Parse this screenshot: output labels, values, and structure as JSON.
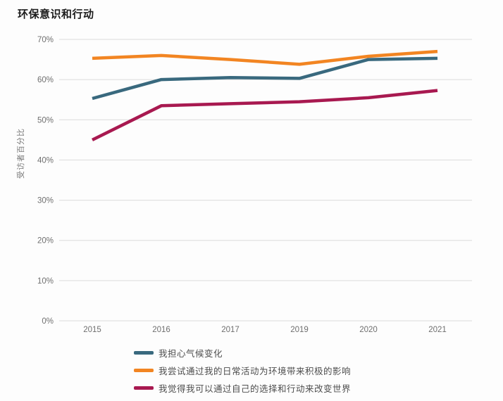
{
  "title": "环保意识和行动",
  "chart_data": {
    "type": "line",
    "x": [
      "2015",
      "2016",
      "2017",
      "2019",
      "2020",
      "2021"
    ],
    "series": [
      {
        "id": "worry-climate-change",
        "name": "我担心气候变化",
        "color": "#39697e",
        "values": [
          55.3,
          60,
          60.5,
          60.3,
          65,
          65.3
        ]
      },
      {
        "id": "daily-positive-impact",
        "name": "我尝试通过我的日常活动为环境带来积极的影响",
        "color": "#f28522",
        "values": [
          65.3,
          66,
          65,
          63.8,
          65.8,
          67
        ]
      },
      {
        "id": "choices-change-world",
        "name": "我觉得我可以通过自己的选择和行动来改变世界",
        "color": "#a81950",
        "values": [
          45,
          53.5,
          54,
          54.5,
          55.5,
          57.3
        ]
      }
    ],
    "ylabel": "受访者百分比",
    "xlabel": "",
    "ylim": [
      0,
      70
    ],
    "yticks": [
      "0%",
      "10%",
      "20%",
      "30%",
      "40%",
      "50%",
      "60%",
      "70%"
    ],
    "grid": true,
    "legend_position": "bottom"
  }
}
